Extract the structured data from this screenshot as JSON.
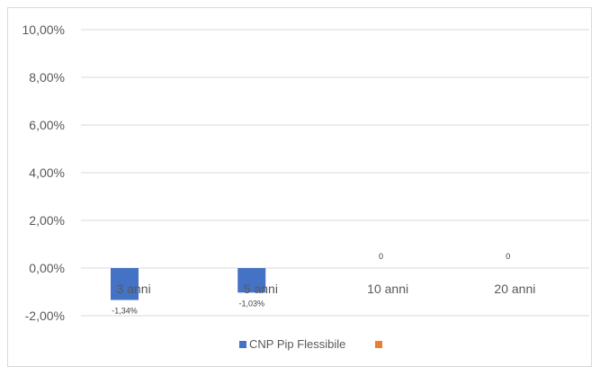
{
  "chart_data": {
    "type": "bar",
    "categories": [
      "3 anni",
      "5 anni",
      "10 anni",
      "20 anni"
    ],
    "series": [
      {
        "name": "CNP Pip Flessibile",
        "color": "#4472c4",
        "values": [
          -1.34,
          -1.03,
          0,
          0
        ],
        "labels": [
          "-1,34%",
          "-1,03%",
          "",
          ""
        ]
      },
      {
        "name": "",
        "color": "#ed7d31",
        "values": [
          0,
          0,
          0,
          0
        ],
        "labels": [
          "",
          "",
          "0",
          "0"
        ]
      }
    ],
    "yticks": [
      "10,00%",
      "8,00%",
      "6,00%",
      "4,00%",
      "2,00%",
      "0,00%",
      "-2,00%"
    ],
    "ylim": [
      -2,
      10
    ],
    "grid": true,
    "legend_position": "bottom",
    "title": "",
    "xlabel": "",
    "ylabel": ""
  }
}
